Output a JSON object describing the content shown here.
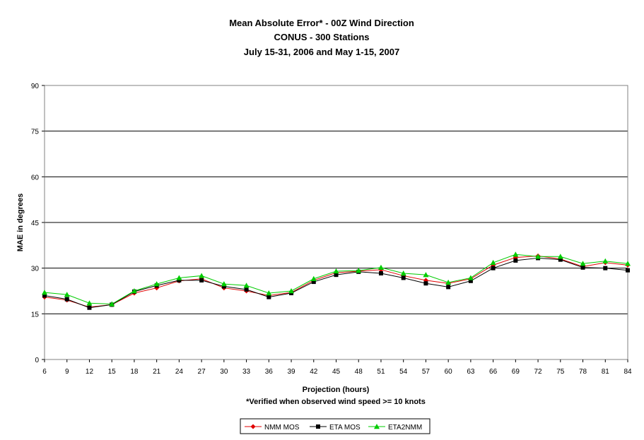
{
  "chart_data": {
    "type": "line",
    "title_lines": [
      "Mean Absolute Error* - 00Z Wind Direction",
      "CONUS - 300 Stations",
      "July 15-31, 2006 and May 1-15, 2007"
    ],
    "xlabel": "Projection (hours)",
    "ylabel": "MAE in degrees",
    "footnote": "*Verified when observed wind speed >= 10 knots",
    "x": [
      6,
      9,
      12,
      15,
      18,
      21,
      24,
      27,
      30,
      33,
      36,
      39,
      42,
      45,
      48,
      51,
      54,
      57,
      60,
      63,
      66,
      69,
      72,
      75,
      78,
      81,
      84
    ],
    "x_tick_labels": [
      "6",
      "9",
      "12",
      "15",
      "18",
      "21",
      "24",
      "27",
      "30",
      "33",
      "36",
      "39",
      "42",
      "45",
      "48",
      "51",
      "54",
      "57",
      "60",
      "63",
      "66",
      "69",
      "72",
      "75",
      "78",
      "81",
      "84"
    ],
    "ylim": [
      0,
      90
    ],
    "y_ticks": [
      0,
      15,
      30,
      45,
      60,
      75,
      90
    ],
    "grid": "horizontal",
    "legend_position": "bottom-center",
    "series": [
      {
        "name": "NMM MOS",
        "color": "#e00000",
        "marker": "diamond",
        "values": [
          20.5,
          19.5,
          17.2,
          18.0,
          21.8,
          23.5,
          25.8,
          26.5,
          23.5,
          22.5,
          21.0,
          22.0,
          26.0,
          28.5,
          29.0,
          29.5,
          27.5,
          26.0,
          25.0,
          26.5,
          31.0,
          33.5,
          34.0,
          33.0,
          30.5,
          31.8,
          31.0
        ]
      },
      {
        "name": "ETA MOS",
        "color": "#000000",
        "marker": "square",
        "values": [
          21.0,
          19.8,
          17.0,
          18.0,
          22.3,
          24.3,
          26.0,
          26.0,
          24.0,
          23.0,
          20.5,
          21.8,
          25.5,
          27.8,
          28.8,
          28.3,
          26.8,
          25.0,
          23.8,
          25.8,
          30.0,
          32.5,
          33.3,
          32.8,
          30.2,
          30.0,
          29.3
        ]
      },
      {
        "name": "ETA2NMM",
        "color": "#00cc00",
        "marker": "triangle",
        "values": [
          22.0,
          21.3,
          18.5,
          18.2,
          22.5,
          24.8,
          26.8,
          27.5,
          24.8,
          24.3,
          21.8,
          22.5,
          26.5,
          29.0,
          29.2,
          30.2,
          28.3,
          27.8,
          25.3,
          26.8,
          31.8,
          34.5,
          33.8,
          33.8,
          31.5,
          32.3,
          31.5
        ]
      }
    ]
  }
}
